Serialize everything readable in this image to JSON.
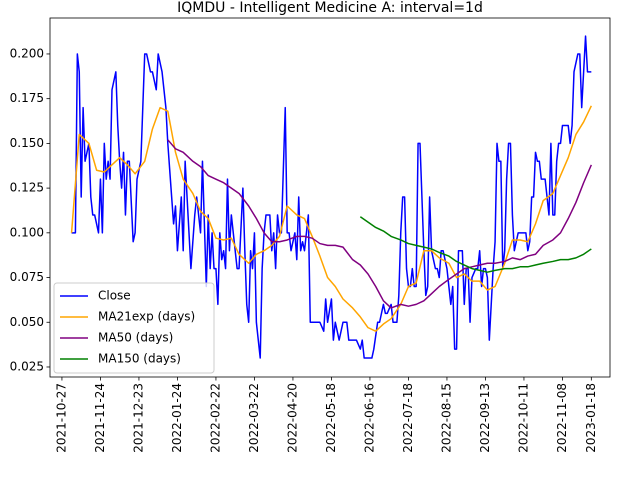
{
  "chart_data": {
    "type": "line",
    "title": "IQMDU - Intelligent Medicine A: interval=1d",
    "xlim": [
      -6.2,
      284.7
    ],
    "ylim": [
      0.0194,
      0.2201
    ],
    "xticks": [
      {
        "value": 0,
        "label": "2021-10-27"
      },
      {
        "value": 20,
        "label": "2021-11-24"
      },
      {
        "value": 40,
        "label": "2021-12-23"
      },
      {
        "value": 60,
        "label": "2022-01-24"
      },
      {
        "value": 80,
        "label": "2022-02-22"
      },
      {
        "value": 100,
        "label": "2022-03-22"
      },
      {
        "value": 120,
        "label": "2022-04-20"
      },
      {
        "value": 140,
        "label": "2022-05-18"
      },
      {
        "value": 160,
        "label": "2022-06-16"
      },
      {
        "value": 180,
        "label": "2022-07-18"
      },
      {
        "value": 200,
        "label": "2022-08-15"
      },
      {
        "value": 220,
        "label": "2022-09-13"
      },
      {
        "value": 240,
        "label": "2022-10-11"
      },
      {
        "value": 260,
        "label": "2022-11-08"
      },
      {
        "value": 275,
        "label": "2023-01-18"
      }
    ],
    "yticks": [
      {
        "value": 0.025,
        "label": "0.025"
      },
      {
        "value": 0.05,
        "label": "0.050"
      },
      {
        "value": 0.075,
        "label": "0.075"
      },
      {
        "value": 0.1,
        "label": "0.100"
      },
      {
        "value": 0.125,
        "label": "0.125"
      },
      {
        "value": 0.15,
        "label": "0.150"
      },
      {
        "value": 0.175,
        "label": "0.175"
      },
      {
        "value": 0.2,
        "label": "0.200"
      }
    ],
    "legend": "lower left",
    "series": [
      {
        "name": "Close",
        "color": "#0000ff",
        "x": [
          5,
          7,
          8,
          9,
          10,
          11,
          12,
          14,
          15,
          16,
          17,
          19,
          20,
          21,
          22,
          23,
          24,
          25,
          26,
          28,
          29,
          30,
          31,
          32,
          33,
          34,
          35,
          37,
          38,
          39,
          41,
          43,
          44,
          46,
          47,
          49,
          50,
          52,
          54,
          55,
          57,
          58,
          59,
          60,
          62,
          63,
          64,
          66,
          67,
          69,
          70,
          72,
          73,
          75,
          76,
          77,
          78,
          79,
          80,
          81,
          82,
          83,
          84,
          85,
          86,
          87,
          88,
          89,
          90,
          91,
          92,
          94,
          95,
          96,
          97,
          98,
          99,
          100,
          101,
          102,
          103,
          104,
          105,
          106,
          107,
          108,
          109,
          110,
          111,
          112,
          113,
          114,
          116,
          117,
          118,
          119,
          121,
          122,
          123,
          124,
          125,
          126,
          128,
          129,
          131,
          132,
          134,
          136,
          137,
          138,
          140,
          141,
          142,
          143,
          144,
          146,
          148,
          149,
          150,
          152,
          153,
          155,
          156,
          157,
          159,
          161,
          162,
          164,
          165,
          167,
          168,
          169,
          171,
          172,
          174,
          175,
          176,
          177,
          178,
          179,
          180,
          181,
          182,
          183,
          184,
          185,
          186,
          188,
          189,
          190,
          191,
          192,
          193,
          194,
          195,
          196,
          197,
          198,
          199,
          200,
          201,
          202,
          203,
          204,
          205,
          206,
          207,
          208,
          209,
          210,
          211,
          212,
          213,
          215,
          216,
          217,
          218,
          219,
          220,
          221,
          222,
          223,
          224,
          225,
          226,
          227,
          228,
          229,
          230,
          231,
          232,
          233,
          234,
          235,
          236,
          237,
          238,
          239,
          241,
          242,
          243,
          244,
          245,
          246,
          247,
          248,
          249,
          250,
          251,
          253,
          254,
          255,
          256,
          257,
          258,
          259,
          260,
          262,
          263,
          264,
          265,
          266,
          268,
          269,
          270,
          271,
          272,
          273,
          274,
          275
        ],
        "values": [
          0.1,
          0.1,
          0.2,
          0.19,
          0.12,
          0.17,
          0.14,
          0.15,
          0.12,
          0.11,
          0.11,
          0.1,
          0.13,
          0.1,
          0.15,
          0.13,
          0.14,
          0.13,
          0.18,
          0.19,
          0.16,
          0.14,
          0.125,
          0.145,
          0.11,
          0.14,
          0.14,
          0.095,
          0.1,
          0.13,
          0.14,
          0.2,
          0.2,
          0.19,
          0.19,
          0.18,
          0.2,
          0.19,
          0.17,
          0.15,
          0.12,
          0.105,
          0.115,
          0.09,
          0.12,
          0.09,
          0.14,
          0.1,
          0.08,
          0.11,
          0.12,
          0.1,
          0.14,
          0.07,
          0.11,
          0.08,
          0.1,
          0.08,
          0.08,
          0.06,
          0.1,
          0.085,
          0.09,
          0.08,
          0.13,
          0.09,
          0.11,
          0.1,
          0.09,
          0.08,
          0.08,
          0.125,
          0.09,
          0.06,
          0.05,
          0.09,
          0.08,
          0.1,
          0.05,
          0.04,
          0.03,
          0.08,
          0.1,
          0.11,
          0.11,
          0.11,
          0.09,
          0.1,
          0.08,
          0.11,
          0.1,
          0.1,
          0.17,
          0.1,
          0.1,
          0.09,
          0.1,
          0.085,
          0.12,
          0.09,
          0.095,
          0.09,
          0.11,
          0.05,
          0.05,
          0.05,
          0.05,
          0.045,
          0.063,
          0.05,
          0.063,
          0.04,
          0.05,
          0.045,
          0.04,
          0.05,
          0.05,
          0.04,
          0.04,
          0.04,
          0.04,
          0.035,
          0.04,
          0.03,
          0.03,
          0.03,
          0.035,
          0.05,
          0.05,
          0.06,
          0.055,
          0.055,
          0.06,
          0.05,
          0.05,
          0.065,
          0.1,
          0.12,
          0.12,
          0.08,
          0.07,
          0.07,
          0.08,
          0.07,
          0.07,
          0.15,
          0.15,
          0.09,
          0.065,
          0.07,
          0.12,
          0.09,
          0.085,
          0.08,
          0.08,
          0.075,
          0.09,
          0.09,
          0.085,
          0.08,
          0.07,
          0.06,
          0.07,
          0.035,
          0.035,
          0.09,
          0.09,
          0.09,
          0.06,
          0.08,
          0.08,
          0.05,
          0.075,
          0.08,
          0.08,
          0.09,
          0.07,
          0.08,
          0.08,
          0.075,
          0.04,
          0.06,
          0.08,
          0.095,
          0.15,
          0.14,
          0.14,
          0.08,
          0.09,
          0.13,
          0.15,
          0.15,
          0.11,
          0.09,
          0.095,
          0.1,
          0.1,
          0.1,
          0.1,
          0.09,
          0.095,
          0.12,
          0.12,
          0.145,
          0.14,
          0.14,
          0.13,
          0.13,
          0.13,
          0.11,
          0.15,
          0.11,
          0.11,
          0.14,
          0.15,
          0.15,
          0.16,
          0.16,
          0.16,
          0.15,
          0.16,
          0.19,
          0.2,
          0.2,
          0.17,
          0.19,
          0.21,
          0.19,
          0.19,
          0.19
        ]
      },
      {
        "name": "MA21exp (days)",
        "color": "#ffa500",
        "x": [
          5,
          9,
          14,
          18,
          22,
          26,
          30,
          34,
          38,
          43,
          47,
          51,
          55,
          59,
          63,
          68,
          72,
          76,
          80,
          84,
          88,
          92,
          97,
          101,
          105,
          109,
          113,
          117,
          122,
          126,
          130,
          134,
          138,
          142,
          146,
          151,
          155,
          159,
          163,
          167,
          171,
          176,
          180,
          184,
          188,
          192,
          196,
          201,
          205,
          209,
          213,
          217,
          221,
          225,
          230,
          234,
          238,
          242,
          246,
          250,
          255,
          259,
          263,
          267,
          271,
          275
        ],
        "values": [
          0.1,
          0.155,
          0.15,
          0.135,
          0.134,
          0.138,
          0.142,
          0.138,
          0.133,
          0.14,
          0.158,
          0.17,
          0.168,
          0.145,
          0.13,
          0.122,
          0.112,
          0.108,
          0.097,
          0.096,
          0.097,
          0.088,
          0.083,
          0.088,
          0.09,
          0.093,
          0.098,
          0.115,
          0.11,
          0.108,
          0.098,
          0.087,
          0.075,
          0.07,
          0.063,
          0.058,
          0.053,
          0.047,
          0.045,
          0.049,
          0.052,
          0.06,
          0.07,
          0.072,
          0.09,
          0.09,
          0.086,
          0.083,
          0.075,
          0.077,
          0.073,
          0.073,
          0.068,
          0.07,
          0.083,
          0.096,
          0.096,
          0.095,
          0.105,
          0.118,
          0.122,
          0.132,
          0.142,
          0.155,
          0.162,
          0.171
        ]
      },
      {
        "name": "MA50 (days)",
        "color": "#800080",
        "x": [
          55,
          59,
          63,
          68,
          72,
          76,
          80,
          84,
          88,
          92,
          97,
          101,
          105,
          109,
          113,
          117,
          122,
          126,
          130,
          134,
          138,
          142,
          146,
          151,
          155,
          159,
          163,
          167,
          171,
          176,
          180,
          184,
          188,
          192,
          196,
          201,
          205,
          209,
          213,
          217,
          221,
          225,
          230,
          234,
          238,
          242,
          246,
          250,
          255,
          259,
          263,
          267,
          271,
          275
        ],
        "values": [
          0.152,
          0.147,
          0.145,
          0.14,
          0.137,
          0.132,
          0.13,
          0.128,
          0.125,
          0.122,
          0.115,
          0.108,
          0.1,
          0.095,
          0.095,
          0.096,
          0.098,
          0.098,
          0.097,
          0.094,
          0.093,
          0.093,
          0.092,
          0.085,
          0.082,
          0.077,
          0.07,
          0.062,
          0.058,
          0.06,
          0.059,
          0.06,
          0.062,
          0.066,
          0.07,
          0.074,
          0.077,
          0.08,
          0.081,
          0.082,
          0.083,
          0.083,
          0.084,
          0.086,
          0.085,
          0.087,
          0.088,
          0.093,
          0.096,
          0.1,
          0.108,
          0.117,
          0.128,
          0.138
        ]
      },
      {
        "name": "MA150 (days)",
        "color": "#008000",
        "x": [
          155,
          159,
          163,
          167,
          171,
          176,
          180,
          184,
          188,
          192,
          196,
          201,
          205,
          209,
          213,
          217,
          221,
          225,
          230,
          234,
          238,
          242,
          246,
          250,
          255,
          259,
          263,
          267,
          271,
          275
        ],
        "values": [
          0.109,
          0.106,
          0.103,
          0.101,
          0.098,
          0.096,
          0.094,
          0.093,
          0.092,
          0.091,
          0.089,
          0.087,
          0.084,
          0.082,
          0.08,
          0.079,
          0.078,
          0.079,
          0.08,
          0.08,
          0.081,
          0.081,
          0.082,
          0.083,
          0.084,
          0.085,
          0.085,
          0.086,
          0.088,
          0.091
        ]
      }
    ]
  }
}
